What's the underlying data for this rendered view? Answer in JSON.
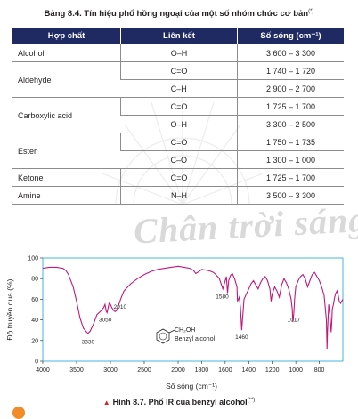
{
  "watermark": "Chân trời sáng tạo",
  "table": {
    "title": "Bảng 8.4. Tín hiệu phổ hồng ngoại của một số nhóm chức cơ bản",
    "title_note": "(*)",
    "headers": [
      "Hợp chất",
      "Liên kết",
      "Số sóng (cm⁻¹)"
    ],
    "rows": [
      {
        "compound": "Alcohol",
        "bond": "O–H",
        "wavenumber": "3 600 – 3 300"
      },
      {
        "compound": "Aldehyde",
        "bond": "C=O",
        "wavenumber": "1 740 – 1 720"
      },
      {
        "compound": "",
        "bond": "C–H",
        "wavenumber": "2 900 – 2 700"
      },
      {
        "compound": "Carboxylic acid",
        "bond": "C=O",
        "wavenumber": "1 725 – 1 700"
      },
      {
        "compound": "",
        "bond": "O–H",
        "wavenumber": "3 300 – 2 500"
      },
      {
        "compound": "Ester",
        "bond": "C=O",
        "wavenumber": "1 750 – 1 735"
      },
      {
        "compound": "",
        "bond": "C–O",
        "wavenumber": "1 300 – 1 000"
      },
      {
        "compound": "Ketone",
        "bond": "C=O",
        "wavenumber": "1 725 – 1 700"
      },
      {
        "compound": "Amine",
        "bond": "N–H",
        "wavenumber": "3 500 – 3 300"
      }
    ]
  },
  "chart_data": {
    "type": "line",
    "xlabel": "Số sóng (cm⁻¹)",
    "ylabel": "Độ truyền qua (%)",
    "xlim": [
      4000,
      600
    ],
    "ylim": [
      0,
      100
    ],
    "xticks": [
      4000,
      3500,
      3000,
      2500,
      2000,
      1800,
      1600,
      1400,
      1200,
      1000,
      800
    ],
    "yticks": [
      0,
      20,
      40,
      60,
      80,
      100
    ],
    "series": [
      {
        "color": "#c2187a",
        "x": [
          4000,
          3900,
          3800,
          3700,
          3660,
          3620,
          3550,
          3500,
          3450,
          3400,
          3350,
          3330,
          3300,
          3250,
          3200,
          3150,
          3100,
          3080,
          3060,
          3050,
          3040,
          3020,
          3000,
          2980,
          2950,
          2930,
          2910,
          2890,
          2870,
          2850,
          2800,
          2700,
          2600,
          2500,
          2400,
          2300,
          2200,
          2100,
          2000,
          1950,
          1900,
          1870,
          1850,
          1820,
          1800,
          1750,
          1720,
          1700,
          1680,
          1650,
          1620,
          1605,
          1590,
          1580,
          1570,
          1555,
          1540,
          1520,
          1500,
          1495,
          1480,
          1470,
          1460,
          1450,
          1440,
          1420,
          1400,
          1380,
          1360,
          1340,
          1320,
          1300,
          1280,
          1260,
          1240,
          1220,
          1210,
          1200,
          1180,
          1160,
          1140,
          1120,
          1100,
          1080,
          1060,
          1040,
          1030,
          1025,
          1017,
          1010,
          1000,
          980,
          960,
          940,
          920,
          900,
          880,
          860,
          840,
          820,
          800,
          780,
          760,
          740,
          735,
          730,
          720,
          710,
          700,
          695,
          690,
          680,
          670,
          660,
          650,
          640,
          630,
          620,
          610,
          600
        ],
        "y": [
          90,
          91,
          91,
          90,
          88,
          84,
          72,
          58,
          42,
          32,
          28,
          27,
          29,
          36,
          45,
          48,
          52,
          55,
          48,
          47,
          50,
          56,
          55,
          52,
          49,
          48,
          49,
          53,
          56,
          60,
          68,
          75,
          80,
          84,
          87,
          89,
          90,
          91,
          92,
          91,
          90,
          88,
          85,
          87,
          89,
          88,
          87,
          86,
          84,
          80,
          70,
          76,
          82,
          66,
          78,
          83,
          85,
          80,
          72,
          58,
          62,
          52,
          30,
          45,
          60,
          65,
          70,
          75,
          78,
          74,
          70,
          76,
          80,
          82,
          78,
          70,
          58,
          65,
          72,
          68,
          62,
          74,
          80,
          76,
          70,
          60,
          50,
          38,
          46,
          60,
          72,
          78,
          82,
          84,
          80,
          72,
          78,
          84,
          86,
          82,
          78,
          72,
          64,
          40,
          12,
          30,
          55,
          45,
          28,
          35,
          50,
          55,
          62,
          66,
          68,
          64,
          58,
          56,
          58,
          60
        ]
      }
    ],
    "annotations": [
      "3330",
      "3050",
      "2910",
      "1580",
      "1460",
      "1017"
    ],
    "structure_label": "Benzyl alcohol",
    "structure_group": "CH₂OH"
  },
  "caption": "Hình 8.7. Phổ IR của benzyl alcohol",
  "caption_note": "(**)"
}
